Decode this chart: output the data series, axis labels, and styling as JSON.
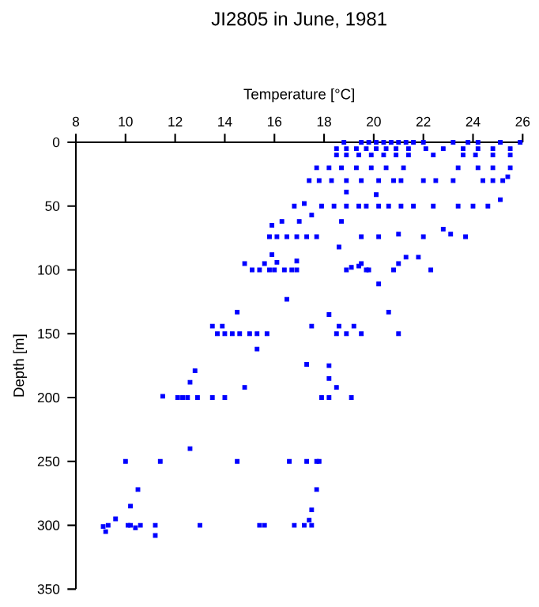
{
  "chart_data": {
    "type": "scatter",
    "title": "JI2805 in June, 1981",
    "xlabel": "Temperature [°C]",
    "ylabel": "Depth [m]",
    "xlim": [
      8,
      26
    ],
    "ylim": [
      350,
      0
    ],
    "xticks": [
      8,
      10,
      12,
      14,
      16,
      18,
      20,
      22,
      24,
      26
    ],
    "yticks": [
      0,
      50,
      100,
      150,
      200,
      250,
      300,
      350
    ],
    "marker": "square",
    "series": [
      {
        "color": "#0000ff",
        "x": [
          18.8,
          19.5,
          19.8,
          20.1,
          20.4,
          20.7,
          21.0,
          21.3,
          21.6,
          22.0,
          23.2,
          23.8,
          24.2,
          25.1,
          25.9,
          18.5,
          18.9,
          19.3,
          19.7,
          20.1,
          20.5,
          20.9,
          21.4,
          22.1,
          22.8,
          23.6,
          24.2,
          24.8,
          25.5,
          18.5,
          18.9,
          19.4,
          19.9,
          20.4,
          20.9,
          21.4,
          22.4,
          23.6,
          24.1,
          24.8,
          25.5,
          17.7,
          18.2,
          18.7,
          19.3,
          19.9,
          20.5,
          21.2,
          23.4,
          24.2,
          24.8,
          25.5,
          17.4,
          17.8,
          18.3,
          18.9,
          19.5,
          20.2,
          20.8,
          21.1,
          22.0,
          22.5,
          23.2,
          24.4,
          24.8,
          25.2,
          25.4,
          18.9,
          20.1,
          16.8,
          17.2,
          17.9,
          18.4,
          18.9,
          19.4,
          19.7,
          20.2,
          20.6,
          21.1,
          21.6,
          22.4,
          23.4,
          24.0,
          24.6,
          25.1,
          15.9,
          16.3,
          17.0,
          17.5,
          18.7,
          15.8,
          16.1,
          16.5,
          16.9,
          17.3,
          17.7,
          18.6,
          19.5,
          20.2,
          21.0,
          22.0,
          22.8,
          23.1,
          23.7,
          15.9,
          21.3,
          14.8,
          15.6,
          16.1,
          16.9,
          15.1,
          15.4,
          15.8,
          16.0,
          16.4,
          16.7,
          16.9,
          18.9,
          19.1,
          19.4,
          19.5,
          19.7,
          19.8,
          20.8,
          21.0,
          21.8,
          22.3,
          20.2,
          16.5,
          20.6,
          14.5,
          18.2,
          13.5,
          13.9,
          17.5,
          18.6,
          19.2,
          13.7,
          14.0,
          14.3,
          14.6,
          15.0,
          15.3,
          15.7,
          18.5,
          18.9,
          19.5,
          21.0,
          15.3,
          17.3,
          18.2,
          12.8,
          18.2,
          12.6,
          14.8,
          18.5,
          11.5,
          12.1,
          12.3,
          12.5,
          12.9,
          13.5,
          14.0,
          17.9,
          18.2,
          19.1,
          10.0,
          11.4,
          12.6,
          14.5,
          16.6,
          17.3,
          17.7,
          17.8,
          10.5,
          17.7,
          10.2,
          17.5,
          9.1,
          9.2,
          9.3,
          9.6,
          10.1,
          10.2,
          10.4,
          10.6,
          11.2,
          11.2,
          13.0,
          15.4,
          15.6,
          16.8,
          17.2,
          17.5,
          17.4
        ],
        "values": [
          0,
          0,
          0,
          0,
          0,
          0,
          0,
          0,
          0,
          0,
          0,
          0,
          0,
          0,
          0,
          5,
          5,
          5,
          5,
          5,
          5,
          5,
          5,
          5,
          5,
          5,
          5,
          5,
          5,
          10,
          10,
          10,
          10,
          10,
          10,
          10,
          10,
          10,
          10,
          10,
          10,
          20,
          20,
          20,
          20,
          20,
          20,
          20,
          20,
          20,
          20,
          20,
          30,
          30,
          30,
          30,
          30,
          30,
          30,
          30,
          30,
          30,
          30,
          30,
          30,
          30,
          27,
          39,
          41,
          50,
          48,
          50,
          50,
          50,
          50,
          50,
          50,
          50,
          50,
          50,
          50,
          50,
          50,
          50,
          45,
          65,
          62,
          62,
          57,
          62,
          74,
          74,
          74,
          74,
          74,
          74,
          82,
          74,
          74,
          72,
          74,
          68,
          72,
          74,
          88,
          90,
          95,
          95,
          94,
          93,
          100,
          100,
          100,
          100,
          100,
          100,
          100,
          100,
          98,
          97,
          95,
          100,
          100,
          100,
          95,
          90,
          100,
          111,
          123,
          133,
          133,
          135,
          144,
          144,
          144,
          144,
          144,
          150,
          150,
          150,
          150,
          150,
          150,
          150,
          150,
          150,
          150,
          150,
          162,
          174,
          175,
          179,
          185,
          188,
          192,
          192,
          199,
          200,
          200,
          200,
          200,
          200,
          200,
          200,
          200,
          200,
          250,
          250,
          240,
          250,
          250,
          250,
          250,
          250,
          272,
          272,
          285,
          288,
          301,
          305,
          300,
          295,
          300,
          300,
          302,
          300,
          300,
          308,
          300,
          300,
          300,
          300,
          300,
          300,
          296
        ]
      }
    ]
  }
}
